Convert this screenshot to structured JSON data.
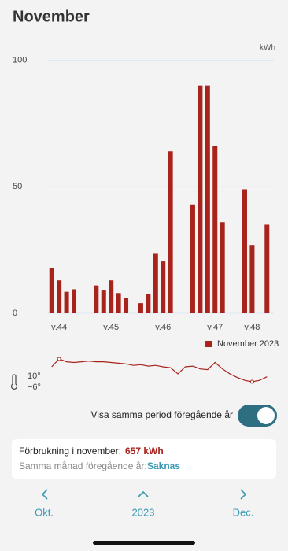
{
  "header": {
    "title": "November"
  },
  "chart_data": [
    {
      "type": "bar",
      "y_unit": "kWh",
      "x": [
        1,
        2,
        3,
        4,
        5,
        6,
        7,
        8,
        9,
        10,
        11,
        12,
        13,
        14,
        15,
        16,
        17,
        18,
        19,
        20,
        21,
        22,
        23,
        24,
        25,
        26,
        27,
        28,
        29,
        30
      ],
      "xlim": [
        0.5,
        30.5
      ],
      "xticks": [
        {
          "value": 2,
          "label": "v.44"
        },
        {
          "value": 9,
          "label": "v.45"
        },
        {
          "value": 16,
          "label": "v.46"
        },
        {
          "value": 23,
          "label": "v.47"
        },
        {
          "value": 28,
          "label": "v.48"
        }
      ],
      "ylim": [
        0,
        100
      ],
      "yticks": [
        0,
        50,
        100
      ],
      "grid": true,
      "series": [
        {
          "name": "November 2023",
          "color": "#a8231c",
          "values": [
            18,
            13,
            8.5,
            9.5,
            null,
            null,
            11,
            9,
            13,
            8,
            6,
            null,
            4,
            7.5,
            23.5,
            20.5,
            64,
            null,
            null,
            43,
            90,
            90,
            66,
            36,
            null,
            null,
            49,
            27,
            null,
            35
          ]
        }
      ]
    },
    {
      "type": "line",
      "x": [
        1,
        2,
        3,
        4,
        5,
        6,
        7,
        8,
        9,
        10,
        11,
        12,
        13,
        14,
        15,
        16,
        17,
        18,
        19,
        20,
        21,
        22,
        23,
        24,
        25,
        26,
        27,
        28,
        29,
        30
      ],
      "xlim": [
        0.5,
        30.5
      ],
      "ylim": [
        -6,
        10
      ],
      "yticks": [
        {
          "value": 10,
          "label": "10°"
        },
        {
          "value": -6,
          "label": "−6°"
        }
      ],
      "series": [
        {
          "color": "#a8231c",
          "values": [
            4.5,
            10,
            8,
            7.5,
            8,
            8.5,
            8,
            8,
            7.5,
            7,
            6.5,
            5.5,
            6,
            5,
            5.5,
            4.5,
            3.8,
            -0.5,
            4.5,
            5,
            3,
            2.5,
            7.5,
            3,
            -0.5,
            -3,
            -5,
            -6,
            -5,
            -2.5
          ]
        }
      ]
    }
  ],
  "toggle": {
    "label": "Visa samma period föregående år"
  },
  "summary": {
    "consumption_label": "Förbrukning i november:",
    "consumption_value": "657 kWh",
    "previous_label": "Samma månad föregående år:",
    "previous_value": "Saknas"
  },
  "nav": {
    "prev": "Okt.",
    "current": "2023",
    "next": "Dec."
  }
}
